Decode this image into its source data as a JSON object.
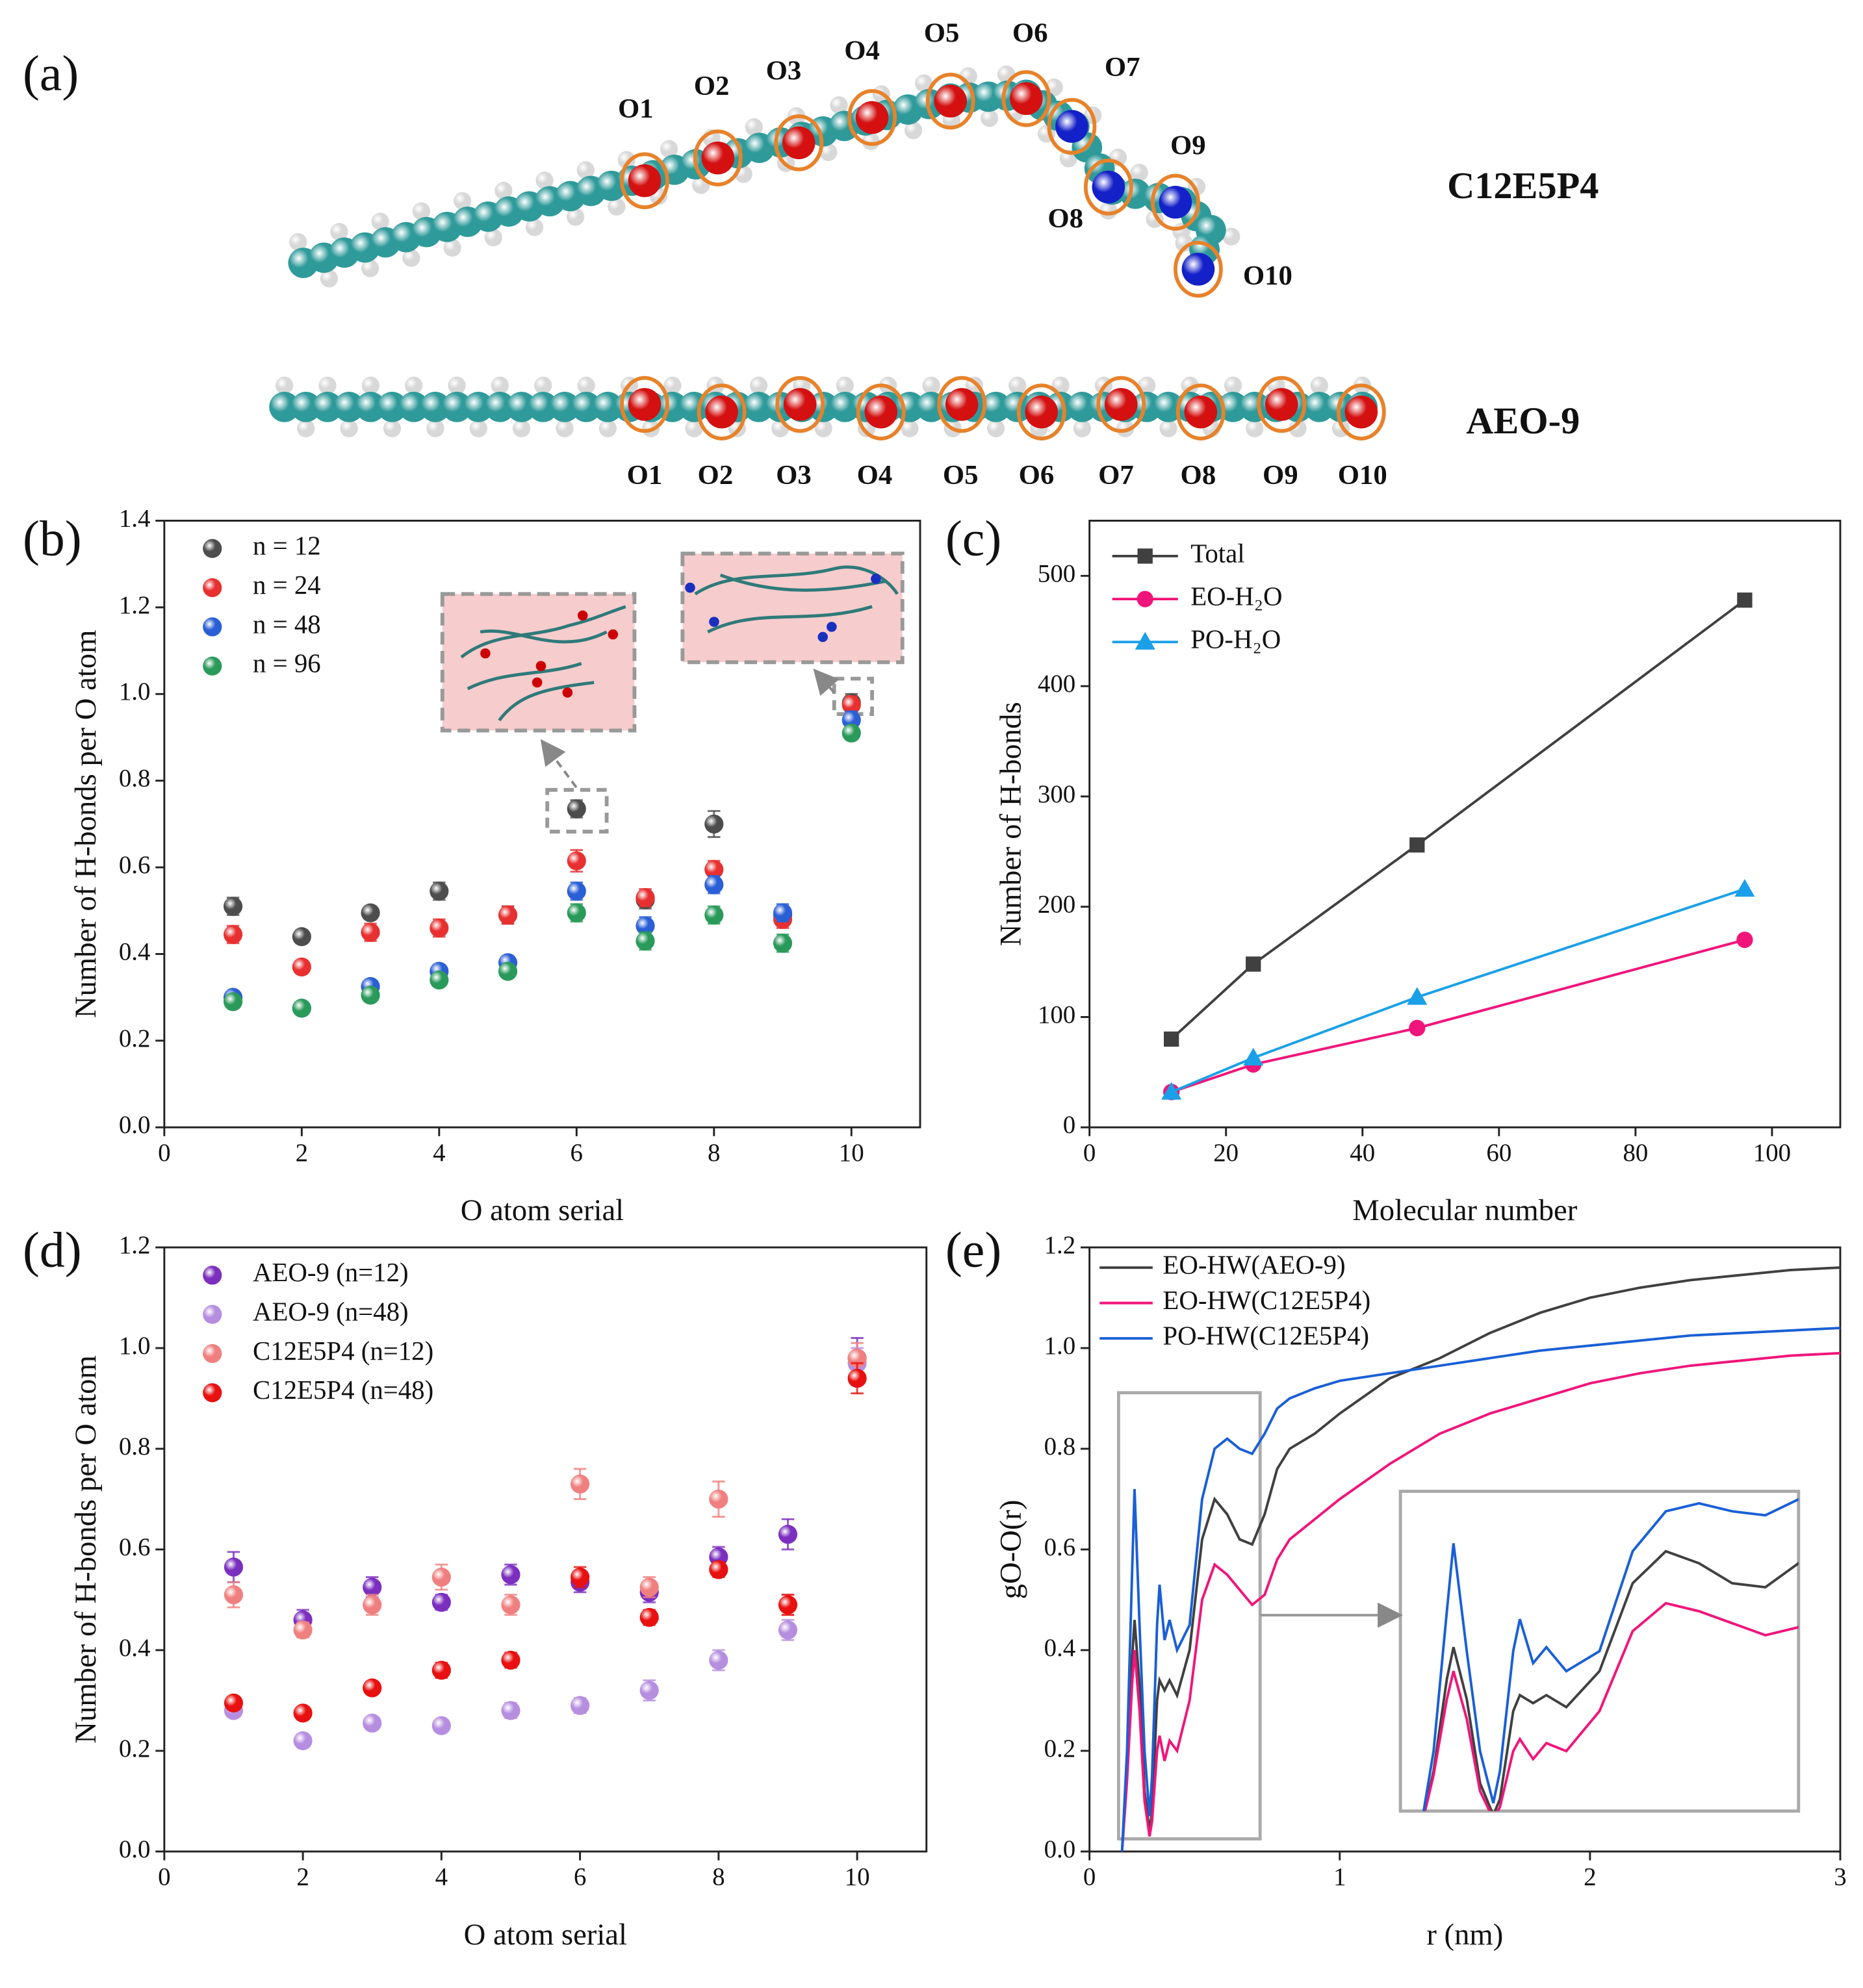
{
  "figure": {
    "panel_labels": [
      "(a)",
      "(b)",
      "(c)",
      "(d)",
      "(e)"
    ],
    "molecules": [
      {
        "name": "C12E5P4",
        "oxygen_labels": [
          "O1",
          "O2",
          "O3",
          "O4",
          "O5",
          "O6",
          "O7",
          "O8",
          "O9",
          "O10"
        ]
      },
      {
        "name": "AEO-9",
        "oxygen_labels": [
          "O1",
          "O2",
          "O3",
          "O4",
          "O5",
          "O6",
          "O7",
          "O8",
          "O9",
          "O10"
        ]
      }
    ]
  },
  "chart_data": [
    {
      "type": "scatter",
      "xlabel": "O atom serial",
      "ylabel": "Number of H-bonds per O atom",
      "x": [
        1,
        2,
        3,
        4,
        5,
        6,
        7,
        8,
        9,
        10
      ],
      "xlim": [
        0,
        11
      ],
      "xticks": [
        0,
        2,
        4,
        6,
        8,
        10
      ],
      "ylim": [
        0,
        1.4
      ],
      "yticks": [
        {
          "value": 0,
          "label": "0.0"
        },
        0.2,
        0.4,
        0.6,
        0.8,
        {
          "value": 1,
          "label": "1.0"
        },
        1.2,
        1.4
      ],
      "legend": "upper left",
      "series": [
        {
          "name": "n = 12",
          "color": "#4d4d4d",
          "values": [
            0.51,
            0.44,
            0.495,
            0.545,
            0.49,
            0.735,
            0.525,
            0.7,
            0.49,
            0.98
          ],
          "errors": [
            0.02,
            0.015,
            0.015,
            0.02,
            0.02,
            0.02,
            0.02,
            0.03,
            0.02,
            0.02
          ]
        },
        {
          "name": "n = 24",
          "color": "#e83030",
          "values": [
            0.445,
            0.37,
            0.45,
            0.46,
            0.49,
            0.615,
            0.53,
            0.595,
            0.48,
            0.975
          ],
          "errors": [
            0.02,
            0.015,
            0.02,
            0.02,
            0.02,
            0.025,
            0.02,
            0.02,
            0.02,
            0.02
          ]
        },
        {
          "name": "n = 48",
          "color": "#2a5fd6",
          "values": [
            0.3,
            0.275,
            0.325,
            0.36,
            0.38,
            0.545,
            0.465,
            0.56,
            0.495,
            0.94
          ],
          "errors": [
            0.01,
            0.01,
            0.01,
            0.015,
            0.015,
            0.02,
            0.02,
            0.02,
            0.02,
            0.02
          ]
        },
        {
          "name": "n = 96",
          "color": "#2a9a5a",
          "values": [
            0.29,
            0.275,
            0.305,
            0.34,
            0.36,
            0.495,
            0.43,
            0.49,
            0.425,
            0.91
          ],
          "errors": [
            0.01,
            0.01,
            0.01,
            0.01,
            0.01,
            0.02,
            0.02,
            0.02,
            0.02,
            0.015
          ]
        }
      ]
    },
    {
      "type": "line",
      "xlabel": "Molecular number",
      "ylabel": "Number of  H-bonds",
      "x": [
        12,
        24,
        48,
        96
      ],
      "xlim": [
        0,
        110
      ],
      "xticks": [
        0,
        20,
        40,
        60,
        80,
        100
      ],
      "ylim": [
        0,
        550
      ],
      "yticks": [
        0,
        100,
        200,
        300,
        400,
        500
      ],
      "legend": "upper left",
      "series": [
        {
          "name": "Total",
          "color": "#404040",
          "marker": "square",
          "values": [
            80,
            148,
            256,
            478
          ]
        },
        {
          "name": "EO-H₂O",
          "color": "#f0157a",
          "marker": "circle",
          "values": [
            32,
            57,
            90,
            170
          ]
        },
        {
          "name": "PO-H₂O",
          "color": "#1aa0e8",
          "marker": "triangle",
          "values": [
            32,
            63,
            118,
            216
          ]
        }
      ]
    },
    {
      "type": "scatter",
      "xlabel": "O atom serial",
      "ylabel": "Number of H-bonds per O atom",
      "x": [
        1,
        2,
        3,
        4,
        5,
        6,
        7,
        8,
        9,
        10
      ],
      "xlim": [
        0,
        11
      ],
      "xticks": [
        0,
        2,
        4,
        6,
        8,
        10
      ],
      "ylim": [
        0,
        1.2
      ],
      "yticks": [
        {
          "value": 0,
          "label": "0.0"
        },
        0.2,
        0.4,
        0.6,
        0.8,
        {
          "value": 1,
          "label": "1.0"
        },
        1.2
      ],
      "legend": "upper left",
      "series": [
        {
          "name": "AEO-9 (n=12)",
          "color": "#7b2fbf",
          "values": [
            0.565,
            0.46,
            0.525,
            0.495,
            0.55,
            0.535,
            0.515,
            0.585,
            0.63,
            0.98
          ],
          "errors": [
            0.03,
            0.02,
            0.02,
            0.015,
            0.02,
            0.02,
            0.02,
            0.02,
            0.03,
            0.04
          ]
        },
        {
          "name": "AEO-9 (n=48)",
          "color": "#b68ee0",
          "values": [
            0.28,
            0.22,
            0.255,
            0.25,
            0.28,
            0.29,
            0.32,
            0.38,
            0.44,
            0.97
          ],
          "errors": [
            0.01,
            0.01,
            0.01,
            0.01,
            0.015,
            0.015,
            0.02,
            0.02,
            0.02,
            0.03
          ]
        },
        {
          "name": "C12E5P4 (n=12)",
          "color": "#f08080",
          "values": [
            0.51,
            0.44,
            0.49,
            0.545,
            0.49,
            0.73,
            0.525,
            0.7,
            0.49,
            0.98
          ],
          "errors": [
            0.025,
            0.015,
            0.02,
            0.025,
            0.02,
            0.03,
            0.02,
            0.035,
            0.02,
            0.03
          ]
        },
        {
          "name": "C12E5P4 (n=48)",
          "color": "#e81010",
          "values": [
            0.295,
            0.275,
            0.325,
            0.36,
            0.38,
            0.545,
            0.465,
            0.56,
            0.49,
            0.94
          ],
          "errors": [
            0.01,
            0.01,
            0.01,
            0.015,
            0.015,
            0.02,
            0.015,
            0.015,
            0.02,
            0.03
          ]
        }
      ]
    },
    {
      "type": "curve",
      "xlabel": "r (nm)",
      "ylabel": "gO-O(r)",
      "x": [
        0.13,
        0.15,
        0.17,
        0.18,
        0.2,
        0.22,
        0.24,
        0.25,
        0.27,
        0.28,
        0.3,
        0.32,
        0.35,
        0.4,
        0.45,
        0.5,
        0.55,
        0.6,
        0.65,
        0.7,
        0.75,
        0.8,
        0.9,
        1.0,
        1.2,
        1.4,
        1.6,
        1.8,
        2.0,
        2.2,
        2.4,
        2.6,
        2.8,
        3.0
      ],
      "xlim": [
        0,
        3
      ],
      "xticks": [
        0,
        1,
        2,
        3
      ],
      "ylim": [
        0,
        1.2
      ],
      "yticks": [
        {
          "value": 0,
          "label": "0.0"
        },
        0.2,
        0.4,
        0.6,
        0.8,
        {
          "value": 1,
          "label": "1.0"
        },
        1.2
      ],
      "legend": "upper left",
      "inset": {
        "xlim": [
          0.1,
          0.7
        ],
        "ylim": [
          0.05,
          0.85
        ]
      },
      "series": [
        {
          "name": "EO-HW(AEO-9)",
          "color": "#404040",
          "values": [
            0,
            0.15,
            0.38,
            0.46,
            0.33,
            0.12,
            0.04,
            0.08,
            0.3,
            0.34,
            0.32,
            0.34,
            0.31,
            0.4,
            0.62,
            0.7,
            0.67,
            0.62,
            0.61,
            0.67,
            0.76,
            0.8,
            0.83,
            0.87,
            0.94,
            0.98,
            1.03,
            1.07,
            1.1,
            1.12,
            1.135,
            1.145,
            1.155,
            1.16
          ]
        },
        {
          "name": "EO-HW(C12E5P4)",
          "color": "#f0157a",
          "values": [
            0,
            0.14,
            0.33,
            0.4,
            0.28,
            0.1,
            0.03,
            0.06,
            0.2,
            0.23,
            0.18,
            0.22,
            0.2,
            0.3,
            0.5,
            0.57,
            0.55,
            0.52,
            0.49,
            0.51,
            0.58,
            0.62,
            0.66,
            0.7,
            0.77,
            0.83,
            0.87,
            0.9,
            0.93,
            0.95,
            0.965,
            0.975,
            0.985,
            0.99
          ]
        },
        {
          "name": "PO-HW(C12E5P4)",
          "color": "#1a5fd6",
          "values": [
            0,
            0.2,
            0.55,
            0.72,
            0.45,
            0.2,
            0.07,
            0.15,
            0.45,
            0.53,
            0.42,
            0.46,
            0.4,
            0.45,
            0.7,
            0.8,
            0.82,
            0.8,
            0.79,
            0.83,
            0.88,
            0.9,
            0.92,
            0.935,
            0.95,
            0.965,
            0.98,
            0.995,
            1.005,
            1.015,
            1.025,
            1.03,
            1.035,
            1.04
          ]
        }
      ]
    }
  ]
}
